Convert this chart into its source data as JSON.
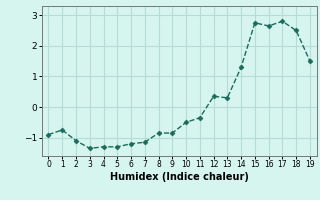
{
  "x": [
    0,
    1,
    2,
    3,
    4,
    5,
    6,
    7,
    8,
    9,
    10,
    11,
    12,
    13,
    14,
    15,
    16,
    17,
    18,
    19
  ],
  "y": [
    -0.9,
    -0.75,
    -1.1,
    -1.35,
    -1.3,
    -1.3,
    -1.2,
    -1.15,
    -0.85,
    -0.85,
    -0.5,
    -0.35,
    0.35,
    0.3,
    1.3,
    2.75,
    2.65,
    2.8,
    2.5,
    1.5
  ],
  "line_color": "#1a6b5a",
  "marker": "D",
  "marker_size": 2.5,
  "bg_color": "#d6f5ef",
  "grid_color": "#b5ddd8",
  "xlabel": "Humidex (Indice chaleur)",
  "xlim": [
    -0.5,
    19.5
  ],
  "ylim": [
    -1.6,
    3.3
  ],
  "yticks": [
    -1,
    0,
    1,
    2,
    3
  ],
  "xticks": [
    0,
    1,
    2,
    3,
    4,
    5,
    6,
    7,
    8,
    9,
    10,
    11,
    12,
    13,
    14,
    15,
    16,
    17,
    18,
    19
  ]
}
